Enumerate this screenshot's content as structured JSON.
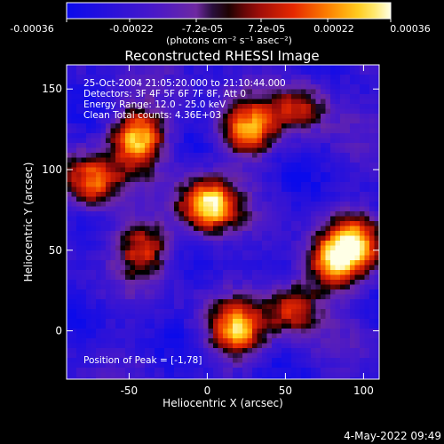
{
  "colorbar": {
    "tick_labels": [
      "-0.00036",
      "-0.00022",
      "-7.2e-05",
      "7.2e-05",
      "0.00022",
      "0.00036"
    ],
    "unit_label": "(photons cm⁻² s⁻¹ asec⁻²)",
    "range": [
      -0.00036,
      0.00036
    ]
  },
  "chart_data": {
    "type": "heatmap",
    "title": "Reconstructed RHESSI Image",
    "xlabel": "Heliocentric X (arcsec)",
    "ylabel": "Heliocentric Y (arcsec)",
    "xlim": [
      -90,
      110
    ],
    "ylim": [
      -30,
      165
    ],
    "x_ticks": [
      -50,
      0,
      50,
      100
    ],
    "y_ticks": [
      0,
      50,
      100,
      150
    ],
    "annotations": [
      "25-Oct-2004 21:05:20.000 to 21:10:44.000",
      "Detectors: 3F 4F 5F 6F 7F 8F, Att 0",
      "Energy Range: 12.0 - 25.0 keV",
      "Clean     Total counts: 4.36E+03"
    ],
    "peak_label": "Position of Peak = [-1,78]",
    "sources": [
      {
        "x": 0,
        "y": 78,
        "value": 0.00036
      },
      {
        "x": -45,
        "y": 120,
        "value": 0.0003
      },
      {
        "x": -75,
        "y": 92,
        "value": 0.00022
      },
      {
        "x": 25,
        "y": 125,
        "value": 0.0002
      },
      {
        "x": 80,
        "y": 42,
        "value": 0.0002
      },
      {
        "x": 95,
        "y": 55,
        "value": 0.00016
      },
      {
        "x": 18,
        "y": 0,
        "value": 0.00022
      },
      {
        "x": 55,
        "y": 15,
        "value": 0.00014
      },
      {
        "x": -40,
        "y": 52,
        "value": 0.00012
      },
      {
        "x": 60,
        "y": 140,
        "value": 0.0001
      }
    ]
  },
  "footer": {
    "timestamp": "4-May-2022 09:49"
  }
}
